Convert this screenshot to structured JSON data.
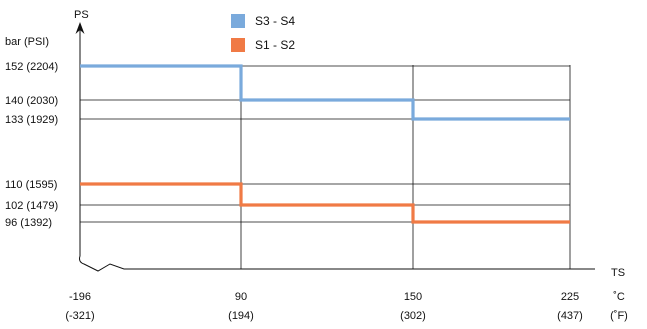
{
  "chart_data": {
    "type": "line",
    "step": true,
    "y_axis": {
      "title": "PS",
      "unit_label": "bar (PSI)",
      "ticks": [
        {
          "value": 152,
          "label": "152 (2204)"
        },
        {
          "value": 140,
          "label": "140 (2030)"
        },
        {
          "value": 133,
          "label": "133 (1929)"
        },
        {
          "value": 110,
          "label": "110 (1595)"
        },
        {
          "value": 102,
          "label": "102 (1479)"
        },
        {
          "value": 96,
          "label": "96  (1392)"
        }
      ]
    },
    "x_axis": {
      "title": "TS",
      "unit_c": "˚C",
      "unit_f": "(˚F)",
      "ticks": [
        {
          "value": -196,
          "label_c": "-196",
          "label_f": "(-321)"
        },
        {
          "value": 90,
          "label_c": "90",
          "label_f": "(194)"
        },
        {
          "value": 150,
          "label_c": "150",
          "label_f": "(302)"
        },
        {
          "value": 225,
          "label_c": "225",
          "label_f": "(437)"
        }
      ]
    },
    "series": [
      {
        "name": "S3 - S4",
        "color": "#7aaadc",
        "points": [
          [
            -196,
            152
          ],
          [
            90,
            152
          ],
          [
            90,
            140
          ],
          [
            150,
            140
          ],
          [
            150,
            133
          ],
          [
            225,
            133
          ]
        ]
      },
      {
        "name": "S1 - S2",
        "color": "#f07a45",
        "points": [
          [
            -196,
            110
          ],
          [
            90,
            110
          ],
          [
            90,
            102
          ],
          [
            150,
            102
          ],
          [
            150,
            96
          ],
          [
            225,
            96
          ]
        ]
      }
    ],
    "grid": true,
    "legend_position": "top-center"
  }
}
